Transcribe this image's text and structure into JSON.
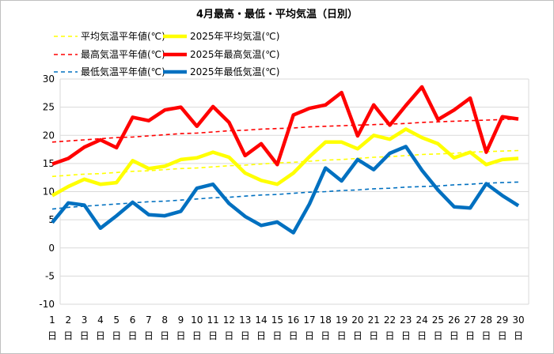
{
  "chart_data": {
    "type": "line",
    "title": "4月最高・最低・平均気温（日別）",
    "x": [
      1,
      2,
      3,
      4,
      5,
      6,
      7,
      8,
      9,
      10,
      11,
      12,
      13,
      14,
      15,
      16,
      17,
      18,
      19,
      20,
      21,
      22,
      23,
      24,
      25,
      26,
      27,
      28,
      29,
      30
    ],
    "x_unit_label": "日",
    "ylim": [
      -10,
      30
    ],
    "yticks": [
      -10,
      -5,
      0,
      5,
      10,
      15,
      20,
      25,
      30
    ],
    "grid": true,
    "legend_position": "top-left",
    "series": [
      {
        "name": "平均気温平年値(℃)",
        "style": "dashed",
        "color": "#ffff00",
        "values": [
          12.7,
          12.9,
          13.1,
          13.2,
          13.4,
          13.6,
          13.7,
          13.9,
          14.1,
          14.2,
          14.4,
          14.6,
          14.7,
          14.9,
          15.1,
          15.2,
          15.4,
          15.6,
          15.7,
          15.9,
          16.1,
          16.2,
          16.4,
          16.6,
          16.7,
          16.8,
          17.0,
          17.1,
          17.2,
          17.3
        ]
      },
      {
        "name": "2025年平均気温(℃)",
        "style": "solid",
        "color": "#ffff00",
        "values": [
          9.3,
          10.9,
          12.2,
          11.3,
          11.6,
          15.5,
          14.1,
          14.5,
          15.7,
          16.0,
          17.0,
          16.1,
          13.3,
          12.0,
          11.3,
          13.3,
          16.2,
          18.8,
          18.8,
          17.6,
          20.0,
          19.3,
          21.1,
          19.6,
          18.5,
          16.0,
          17.0,
          14.8,
          15.7,
          15.9
        ]
      },
      {
        "name": "最高気温平年値(℃)",
        "style": "dashed",
        "color": "#ff0000",
        "values": [
          18.8,
          19.0,
          19.2,
          19.4,
          19.6,
          19.7,
          19.9,
          20.1,
          20.3,
          20.4,
          20.6,
          20.8,
          20.9,
          21.1,
          21.2,
          21.3,
          21.5,
          21.6,
          21.7,
          21.8,
          21.9,
          22.0,
          22.1,
          22.3,
          22.4,
          22.5,
          22.6,
          22.7,
          22.8,
          22.9
        ]
      },
      {
        "name": "2025年最高気温(℃)",
        "style": "solid",
        "color": "#ff0000",
        "values": [
          14.9,
          15.9,
          17.9,
          19.2,
          17.8,
          23.2,
          22.6,
          24.5,
          25.0,
          21.6,
          25.1,
          22.3,
          16.4,
          18.5,
          14.8,
          23.6,
          24.8,
          25.4,
          27.6,
          19.9,
          25.4,
          21.8,
          25.3,
          28.6,
          22.8,
          24.5,
          26.6,
          17.0,
          23.3,
          22.9
        ]
      },
      {
        "name": "最低気温平年値(℃)",
        "style": "dashed",
        "color": "#0070c0",
        "values": [
          6.9,
          7.2,
          7.4,
          7.6,
          7.8,
          8.0,
          8.2,
          8.3,
          8.5,
          8.7,
          8.9,
          9.0,
          9.2,
          9.4,
          9.5,
          9.7,
          9.9,
          10.0,
          10.2,
          10.3,
          10.5,
          10.6,
          10.8,
          10.9,
          11.0,
          11.2,
          11.3,
          11.5,
          11.6,
          11.7
        ]
      },
      {
        "name": "2025年最低気温(℃)",
        "style": "solid",
        "color": "#0070c0",
        "values": [
          4.5,
          8.0,
          7.6,
          3.5,
          5.7,
          8.1,
          5.9,
          5.7,
          6.5,
          10.6,
          11.3,
          7.9,
          5.6,
          4.0,
          4.6,
          2.7,
          7.8,
          14.2,
          11.9,
          15.7,
          13.9,
          16.8,
          18.0,
          13.8,
          10.3,
          7.3,
          7.1,
          11.4,
          9.3,
          7.5
        ]
      }
    ]
  }
}
